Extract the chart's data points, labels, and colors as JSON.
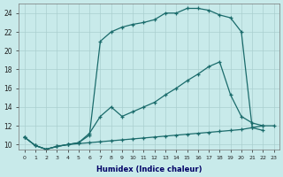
{
  "xlabel": "Humidex (Indice chaleur)",
  "ylabel": "",
  "bg_color": "#c8eaea",
  "grid_color": "#aacfcf",
  "line_color": "#1a6b6b",
  "xlim": [
    -0.5,
    23.5
  ],
  "ylim": [
    9.5,
    25
  ],
  "xticks": [
    0,
    1,
    2,
    3,
    4,
    5,
    6,
    7,
    8,
    9,
    10,
    11,
    12,
    13,
    14,
    15,
    16,
    17,
    18,
    19,
    20,
    21,
    22,
    23
  ],
  "yticks": [
    10,
    12,
    14,
    16,
    18,
    20,
    22,
    24
  ],
  "series1_x": [
    0,
    1,
    2,
    3,
    4,
    5,
    6,
    7,
    8,
    9,
    10,
    11,
    12,
    13,
    14,
    15,
    16,
    17,
    18,
    19,
    20,
    21,
    22
  ],
  "series1_y": [
    10.8,
    9.9,
    9.5,
    9.8,
    10.0,
    10.2,
    11.0,
    21.0,
    22.0,
    22.5,
    22.8,
    23.0,
    23.3,
    24.0,
    24.0,
    24.5,
    24.5,
    24.3,
    23.8,
    23.5,
    22.0,
    11.8,
    11.5
  ],
  "series2_x": [
    0,
    1,
    2,
    3,
    4,
    5,
    6,
    7,
    8,
    9,
    10,
    11,
    12,
    13,
    14,
    15,
    16,
    17,
    18,
    19,
    20,
    21,
    22,
    23
  ],
  "series2_y": [
    10.8,
    9.9,
    9.5,
    9.8,
    10.0,
    10.2,
    11.2,
    13.0,
    14.0,
    13.0,
    13.5,
    14.0,
    14.5,
    15.3,
    16.0,
    16.8,
    17.5,
    18.3,
    18.8,
    15.3,
    13.0,
    12.3,
    12.0,
    null
  ],
  "series3_x": [
    0,
    1,
    2,
    3,
    4,
    5,
    6,
    7,
    8,
    9,
    10,
    11,
    12,
    13,
    14,
    15,
    16,
    17,
    18,
    19,
    20,
    21,
    22,
    23
  ],
  "series3_y": [
    10.8,
    9.9,
    9.5,
    9.8,
    10.0,
    10.1,
    10.2,
    10.3,
    10.4,
    10.5,
    10.6,
    10.7,
    10.8,
    10.9,
    11.0,
    11.1,
    11.2,
    11.3,
    11.4,
    11.5,
    11.6,
    11.8,
    12.0,
    12.0
  ]
}
